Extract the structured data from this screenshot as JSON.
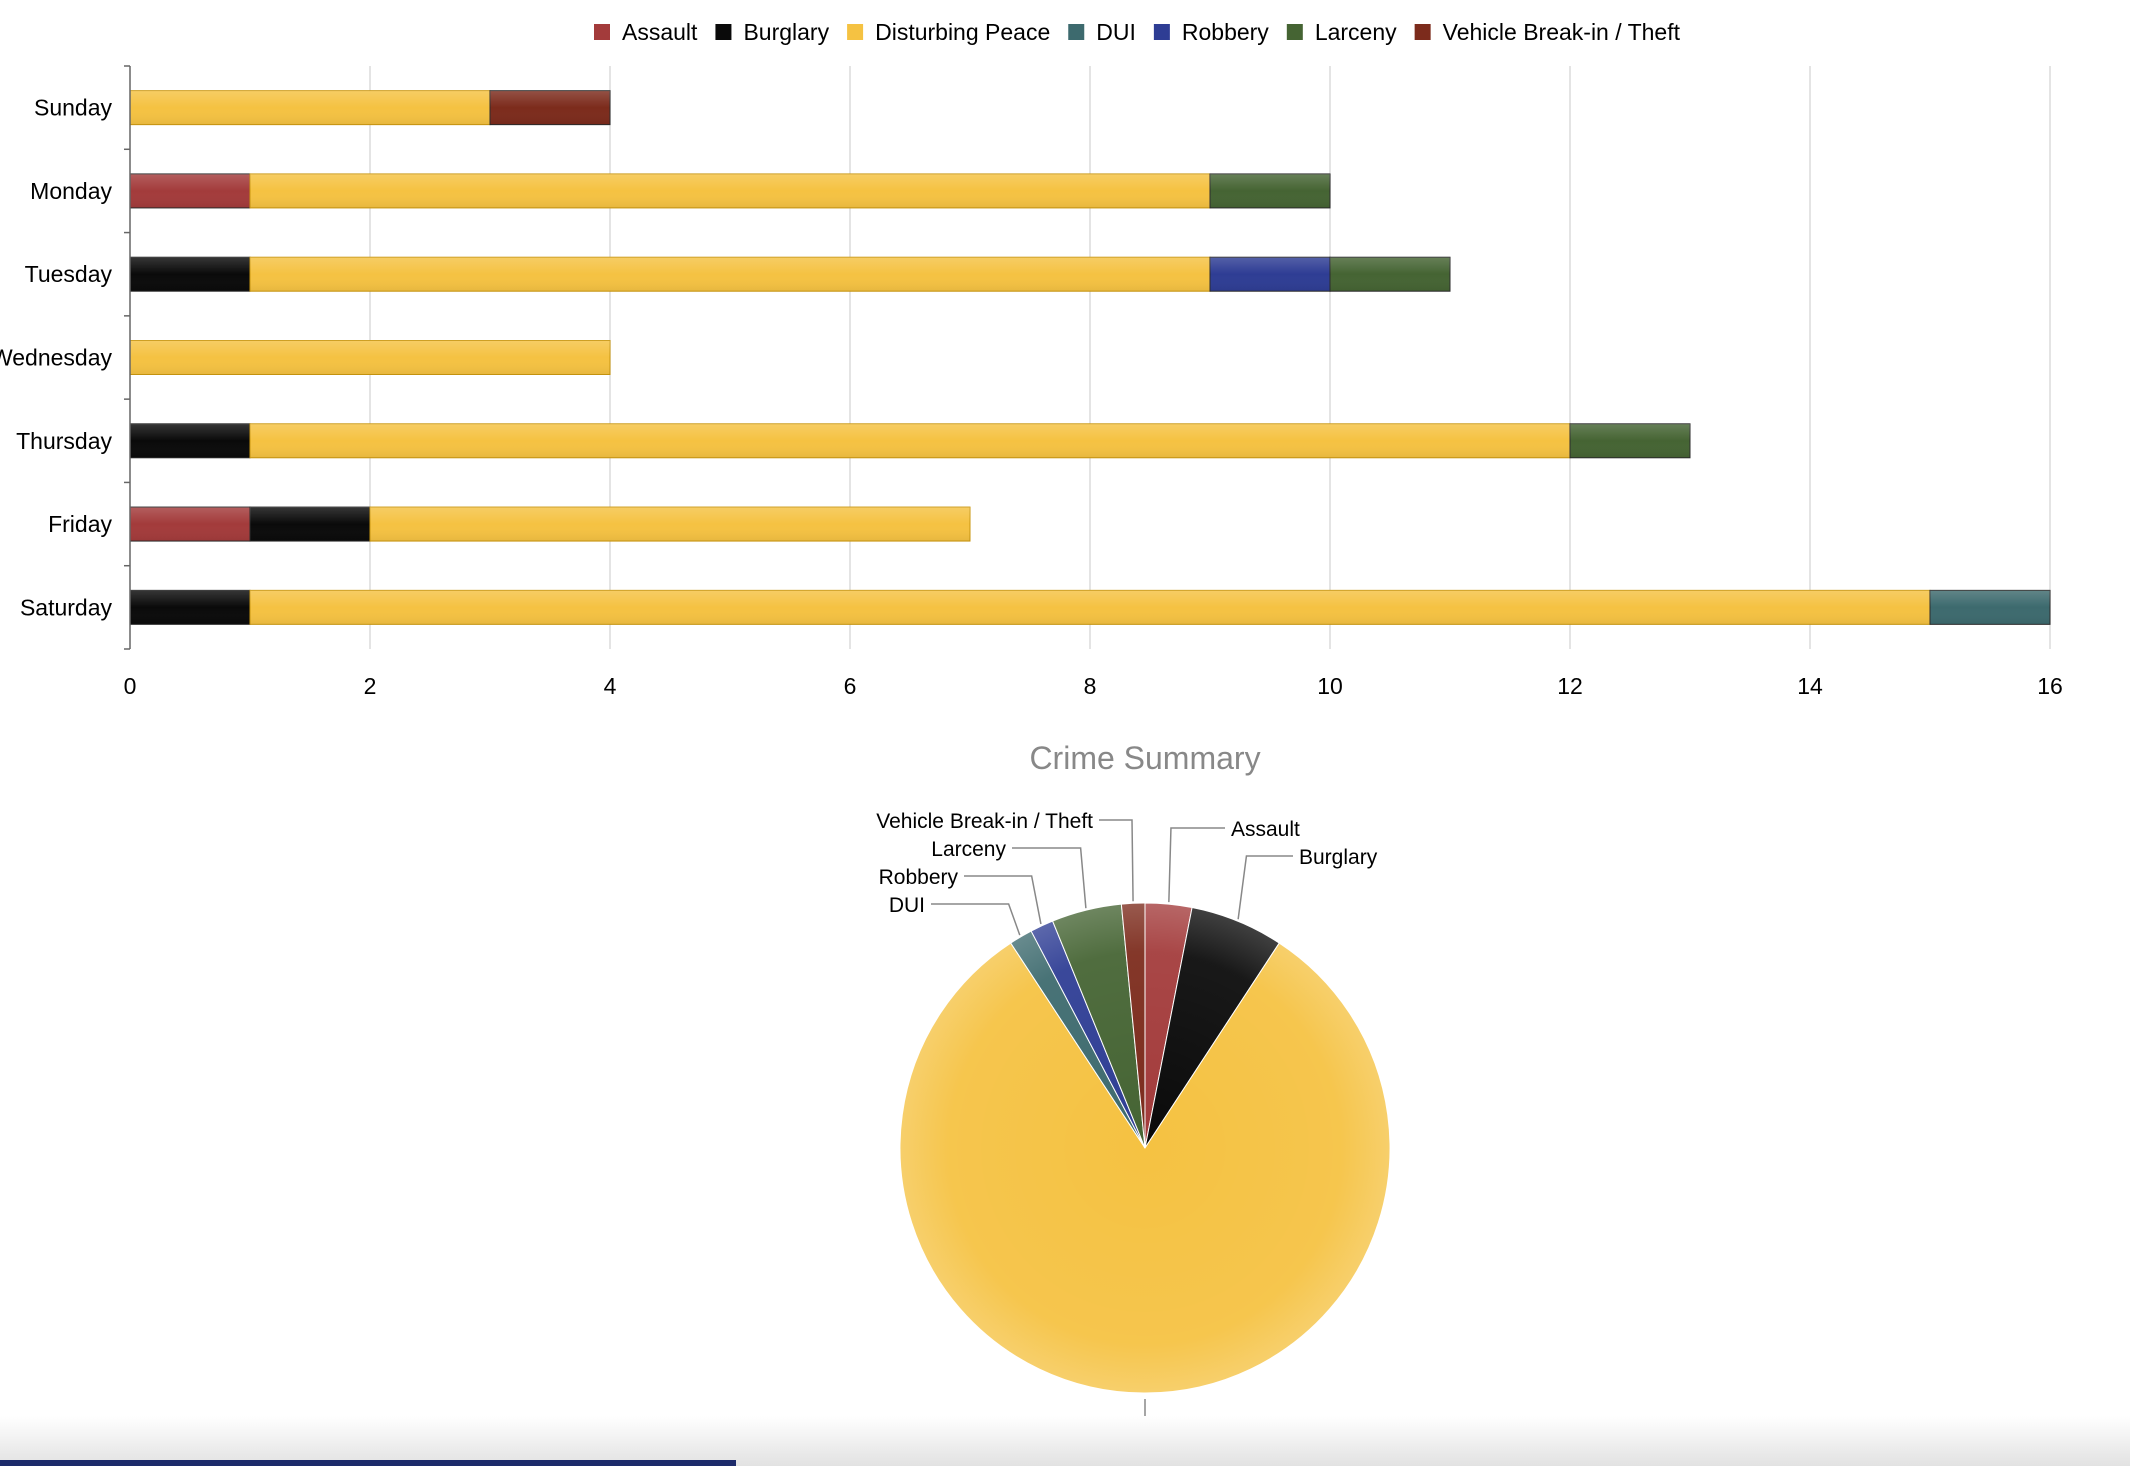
{
  "chart_data": [
    {
      "type": "bar",
      "orientation": "horizontal",
      "stacked": true,
      "categories": [
        "Sunday",
        "Monday",
        "Tuesday",
        "Wednesday",
        "Thursday",
        "Friday",
        "Saturday"
      ],
      "series": [
        {
          "name": "Assault",
          "color": "#a33b3b",
          "values": [
            0,
            1,
            0,
            0,
            0,
            1,
            0
          ]
        },
        {
          "name": "Burglary",
          "color": "#0a0a0a",
          "values": [
            0,
            0,
            1,
            0,
            1,
            1,
            1
          ]
        },
        {
          "name": "Disturbing Peace",
          "color": "#f5c242",
          "values": [
            3,
            8,
            8,
            4,
            11,
            5,
            14
          ]
        },
        {
          "name": "DUI",
          "color": "#3d6a6e",
          "values": [
            0,
            0,
            0,
            0,
            0,
            0,
            1
          ]
        },
        {
          "name": "Robbery",
          "color": "#2e3d94",
          "values": [
            0,
            0,
            1,
            0,
            0,
            0,
            0
          ]
        },
        {
          "name": "Larceny",
          "color": "#456433",
          "values": [
            0,
            1,
            1,
            0,
            1,
            0,
            0
          ]
        },
        {
          "name": "Vehicle Break-in / Theft",
          "color": "#7c2b1c",
          "values": [
            1,
            0,
            0,
            0,
            0,
            0,
            0
          ]
        }
      ],
      "xlim": [
        0,
        16
      ],
      "xticks": [
        "0",
        "2",
        "4",
        "6",
        "8",
        "10",
        "12",
        "14",
        "16"
      ],
      "grid": true,
      "legend": "top-center",
      "title": "",
      "xlabel": "",
      "ylabel": ""
    },
    {
      "type": "pie",
      "title": "Crime Summary",
      "slices": [
        {
          "name": "Assault",
          "value": 2,
          "color": "#a33b3b"
        },
        {
          "name": "Burglary",
          "value": 4,
          "color": "#0a0a0a"
        },
        {
          "name": "Disturbing Peace",
          "value": 53,
          "color": "#f5c242"
        },
        {
          "name": "DUI",
          "value": 1,
          "color": "#3d6a6e"
        },
        {
          "name": "Robbery",
          "value": 1,
          "color": "#2e3d94"
        },
        {
          "name": "Larceny",
          "value": 3,
          "color": "#456433"
        },
        {
          "name": "Vehicle Break-in / Theft",
          "value": 1,
          "color": "#7c2b1c"
        }
      ]
    }
  ]
}
